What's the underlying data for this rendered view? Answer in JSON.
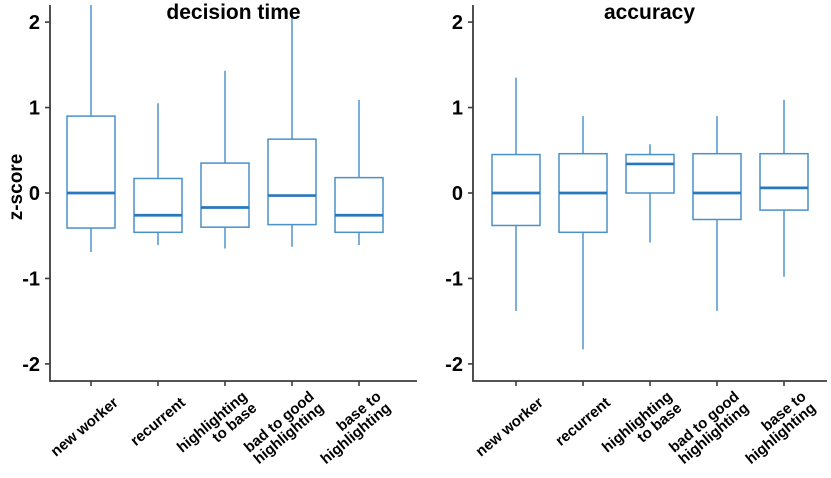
{
  "figure": {
    "background": "#ffffff"
  },
  "style": {
    "box_color": "#4a90c9",
    "median_color": "#2878be",
    "whisker_color": "#5b9bd1",
    "box_fill": "#ffffff",
    "axis_color": "#3c3c3c",
    "text_color": "#000000"
  },
  "chart_data": [
    {
      "type": "box",
      "title": "decision time",
      "ylabel": "z-score",
      "ylim": [
        -2.2,
        2.2
      ],
      "yticks": [
        2,
        1,
        0,
        -1,
        -2
      ],
      "grid": false,
      "legend": false,
      "categories": [
        "new worker",
        "recurrent",
        "highlighting to base",
        "bad to good highlighting",
        "base to highlighting"
      ],
      "category_label_lines": [
        [
          "new worker"
        ],
        [
          "recurrent"
        ],
        [
          "highlighting",
          "to base"
        ],
        [
          "bad to good",
          "highlighting"
        ],
        [
          "base to",
          "highlighting"
        ]
      ],
      "boxes": [
        {
          "category": "new worker",
          "whisker_low": -0.69,
          "q1": -0.41,
          "median": 0.0,
          "q3": 0.9,
          "whisker_high": 2.2
        },
        {
          "category": "recurrent",
          "whisker_low": -0.61,
          "q1": -0.46,
          "median": -0.26,
          "q3": 0.17,
          "whisker_high": 1.05
        },
        {
          "category": "highlighting to base",
          "whisker_low": -0.65,
          "q1": -0.4,
          "median": -0.17,
          "q3": 0.35,
          "whisker_high": 1.43
        },
        {
          "category": "bad to good highlighting",
          "whisker_low": -0.63,
          "q1": -0.37,
          "median": -0.03,
          "q3": 0.63,
          "whisker_high": 2.1
        },
        {
          "category": "base to highlighting",
          "whisker_low": -0.61,
          "q1": -0.46,
          "median": -0.26,
          "q3": 0.18,
          "whisker_high": 1.09
        }
      ]
    },
    {
      "type": "box",
      "title": "accuracy",
      "ylabel": "",
      "ylim": [
        -2.2,
        2.2
      ],
      "yticks": [
        2,
        1,
        0,
        -1,
        -2
      ],
      "grid": false,
      "legend": false,
      "categories": [
        "new worker",
        "recurrent",
        "highlighting to base",
        "bad to good highlighting",
        "base to highlighting"
      ],
      "category_label_lines": [
        [
          "new worker"
        ],
        [
          "recurrent"
        ],
        [
          "highlighting",
          "to base"
        ],
        [
          "bad to good",
          "highlighting"
        ],
        [
          "base to",
          "highlighting"
        ]
      ],
      "boxes": [
        {
          "category": "new worker",
          "whisker_low": -1.38,
          "q1": -0.38,
          "median": 0.0,
          "q3": 0.45,
          "whisker_high": 1.35
        },
        {
          "category": "recurrent",
          "whisker_low": -1.83,
          "q1": -0.46,
          "median": 0.0,
          "q3": 0.46,
          "whisker_high": 0.9
        },
        {
          "category": "highlighting to base",
          "whisker_low": -0.58,
          "q1": 0.0,
          "median": 0.34,
          "q3": 0.45,
          "whisker_high": 0.57
        },
        {
          "category": "bad to good highlighting",
          "whisker_low": -1.38,
          "q1": -0.31,
          "median": 0.0,
          "q3": 0.46,
          "whisker_high": 0.9
        },
        {
          "category": "base to highlighting",
          "whisker_low": -0.98,
          "q1": -0.2,
          "median": 0.06,
          "q3": 0.46,
          "whisker_high": 1.09
        }
      ]
    }
  ]
}
